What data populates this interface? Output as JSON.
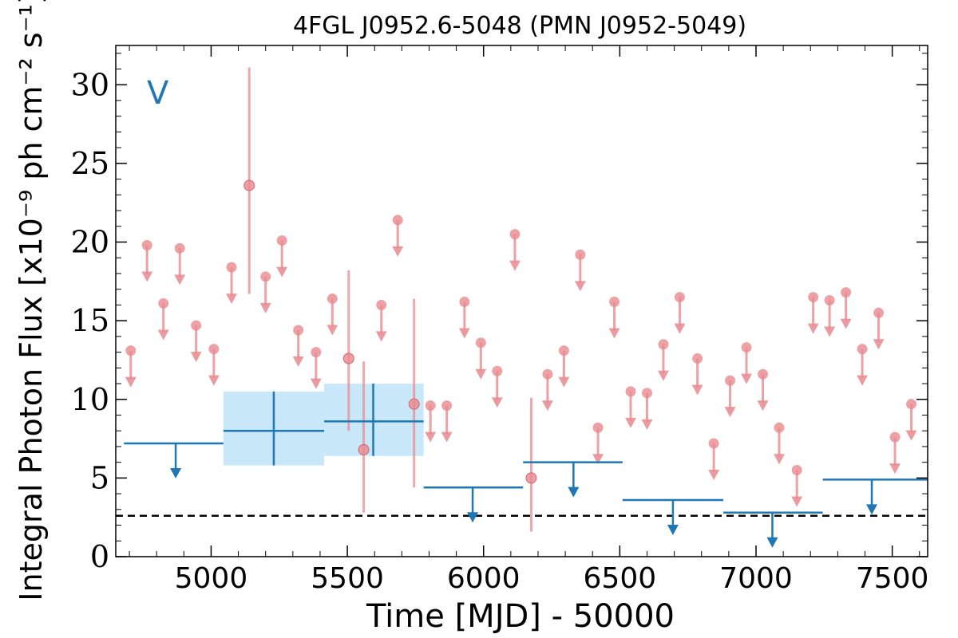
{
  "chart_data": {
    "type": "scatter",
    "title": "4FGL J0952.6-5048 (PMN J0952-5049)",
    "xlabel": "Time [MJD] - 50000",
    "ylabel": "Integral Photon Flux [x10⁻⁹ ph cm⁻² s⁻¹]",
    "panel_label": "V",
    "xlim": [
      4650,
      7630
    ],
    "ylim": [
      0,
      32.5
    ],
    "xticks": [
      5000,
      5500,
      6000,
      6500,
      7000,
      7500
    ],
    "xtick_labels": [
      "5000",
      "5500",
      "6000",
      "6500",
      "7000",
      "7500"
    ],
    "yticks": [
      0,
      5,
      10,
      15,
      20,
      25,
      30
    ],
    "ytick_labels": [
      "0",
      "5",
      "10",
      "15",
      "20",
      "25",
      "30"
    ],
    "grid": false,
    "colors": {
      "short_bins": "#e88a8f",
      "long_bins": "#1f77b4",
      "long_band": "#c8e8fa",
      "threshold": "#000000"
    },
    "threshold_line": 2.6,
    "short_bin_points": [
      {
        "x": 5140,
        "y": 23.6,
        "err_lo": 16.7,
        "err_hi": 31.1
      },
      {
        "x": 5505,
        "y": 12.6,
        "err_lo": 8.0,
        "err_hi": 18.2
      },
      {
        "x": 5560,
        "y": 6.8,
        "err_lo": 2.8,
        "err_hi": 12.4
      },
      {
        "x": 5745,
        "y": 9.7,
        "err_lo": 4.4,
        "err_hi": 16.4
      },
      {
        "x": 6175,
        "y": 5.0,
        "err_lo": 1.6,
        "err_hi": 10.1
      }
    ],
    "short_bin_upper_limits": [
      {
        "x": 4705,
        "y": 13.1
      },
      {
        "x": 4765,
        "y": 19.8
      },
      {
        "x": 4825,
        "y": 16.1
      },
      {
        "x": 4885,
        "y": 19.6
      },
      {
        "x": 4945,
        "y": 14.7
      },
      {
        "x": 5010,
        "y": 13.2
      },
      {
        "x": 5075,
        "y": 18.4
      },
      {
        "x": 5200,
        "y": 17.8
      },
      {
        "x": 5260,
        "y": 20.1
      },
      {
        "x": 5320,
        "y": 14.4
      },
      {
        "x": 5385,
        "y": 13.0
      },
      {
        "x": 5445,
        "y": 16.4
      },
      {
        "x": 5625,
        "y": 16.0
      },
      {
        "x": 5685,
        "y": 21.4
      },
      {
        "x": 5805,
        "y": 9.6
      },
      {
        "x": 5865,
        "y": 9.6
      },
      {
        "x": 5930,
        "y": 16.2
      },
      {
        "x": 5990,
        "y": 13.6
      },
      {
        "x": 6050,
        "y": 11.8
      },
      {
        "x": 6115,
        "y": 20.5
      },
      {
        "x": 6235,
        "y": 11.6
      },
      {
        "x": 6295,
        "y": 13.1
      },
      {
        "x": 6355,
        "y": 19.2
      },
      {
        "x": 6420,
        "y": 8.2
      },
      {
        "x": 6480,
        "y": 16.2
      },
      {
        "x": 6540,
        "y": 10.5
      },
      {
        "x": 6600,
        "y": 10.4
      },
      {
        "x": 6660,
        "y": 13.5
      },
      {
        "x": 6720,
        "y": 16.5
      },
      {
        "x": 6785,
        "y": 12.6
      },
      {
        "x": 6845,
        "y": 7.2
      },
      {
        "x": 6905,
        "y": 11.2
      },
      {
        "x": 6965,
        "y": 13.3
      },
      {
        "x": 7025,
        "y": 11.6
      },
      {
        "x": 7085,
        "y": 8.2
      },
      {
        "x": 7150,
        "y": 5.5
      },
      {
        "x": 7210,
        "y": 16.5
      },
      {
        "x": 7270,
        "y": 16.3
      },
      {
        "x": 7330,
        "y": 16.8
      },
      {
        "x": 7390,
        "y": 13.2
      },
      {
        "x": 7450,
        "y": 15.5
      },
      {
        "x": 7510,
        "y": 7.6
      },
      {
        "x": 7570,
        "y": 9.7
      }
    ],
    "long_bin_points": [
      {
        "x": 5230,
        "x_lo": 5045,
        "x_hi": 5415,
        "y": 8.0,
        "err_lo": 5.8,
        "err_hi": 10.5
      },
      {
        "x": 5595,
        "x_lo": 5415,
        "x_hi": 5780,
        "y": 8.6,
        "err_lo": 6.4,
        "err_hi": 11.0
      }
    ],
    "long_bin_upper_limits": [
      {
        "x": 4870,
        "x_lo": 4680,
        "x_hi": 5045,
        "y": 7.2
      },
      {
        "x": 5960,
        "x_lo": 5780,
        "x_hi": 6145,
        "y": 4.4
      },
      {
        "x": 6330,
        "x_lo": 6145,
        "x_hi": 6510,
        "y": 6.0
      },
      {
        "x": 6695,
        "x_lo": 6510,
        "x_hi": 6880,
        "y": 3.6
      },
      {
        "x": 7060,
        "x_lo": 6880,
        "x_hi": 7245,
        "y": 2.8
      },
      {
        "x": 7425,
        "x_lo": 7245,
        "x_hi": 7630,
        "y": 4.9
      }
    ]
  }
}
